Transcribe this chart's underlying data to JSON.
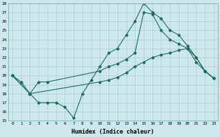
{
  "xlabel": "Humidex (Indice chaleur)",
  "ylabel": "",
  "bg_color": "#cce8ec",
  "grid_color": "#aaccd0",
  "line_color": "#1a6b5a",
  "xlim": [
    -0.5,
    23.5
  ],
  "ylim": [
    15,
    28
  ],
  "xticks": [
    0,
    1,
    2,
    3,
    4,
    5,
    6,
    7,
    8,
    9,
    10,
    11,
    12,
    13,
    14,
    15,
    16,
    17,
    18,
    19,
    20,
    21,
    22,
    23
  ],
  "yticks": [
    15,
    16,
    17,
    18,
    19,
    20,
    21,
    22,
    23,
    24,
    25,
    26,
    27,
    28
  ],
  "line1_x": [
    0,
    1,
    2,
    3,
    4,
    5,
    6,
    7,
    8,
    9,
    10,
    11,
    12,
    13,
    14,
    15,
    16,
    17,
    18,
    19,
    20,
    21,
    22,
    23
  ],
  "line1_y": [
    20.0,
    19.3,
    18.0,
    17.0,
    17.0,
    17.0,
    16.5,
    15.3,
    18.0,
    19.5,
    21.0,
    22.5,
    23.0,
    24.5,
    26.0,
    28.0,
    27.0,
    26.3,
    25.0,
    24.5,
    23.3,
    22.0,
    20.5,
    19.7
  ],
  "line2_x": [
    0,
    2,
    3,
    4,
    10,
    11,
    12,
    13,
    14,
    15,
    16,
    17,
    18,
    19,
    20,
    21,
    22,
    23
  ],
  "line2_y": [
    20.0,
    18.0,
    19.3,
    19.3,
    20.5,
    21.0,
    21.3,
    21.8,
    22.5,
    27.0,
    26.8,
    25.0,
    24.0,
    23.5,
    23.0,
    22.0,
    20.5,
    19.7
  ],
  "line3_x": [
    0,
    2,
    10,
    11,
    12,
    13,
    14,
    15,
    16,
    17,
    18,
    19,
    20,
    21,
    22,
    23
  ],
  "line3_y": [
    20.0,
    18.0,
    19.3,
    19.5,
    19.8,
    20.3,
    21.0,
    21.5,
    22.0,
    22.3,
    22.5,
    22.8,
    23.0,
    21.5,
    20.5,
    19.7
  ]
}
